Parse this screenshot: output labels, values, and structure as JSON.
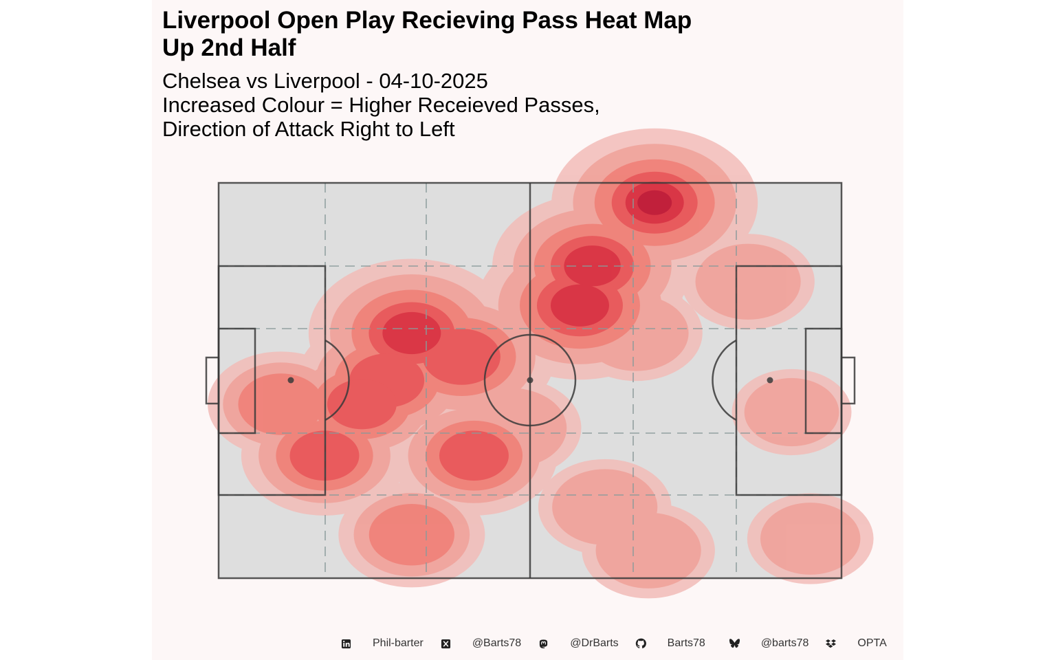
{
  "title": "Liverpool Open Play Recieving Pass Heat Map\nUp 2nd Half",
  "subtitle": "Chelsea vs Liverpool - 04-10-2025\nIncreased Colour = Higher Receieved Passes,\nDirection of Attack Right to Left",
  "footer": [
    {
      "icon": "linkedin-icon",
      "text": "Phil-barter"
    },
    {
      "icon": "x-twitter-icon",
      "text": "@Barts78"
    },
    {
      "icon": "mastodon-icon",
      "text": "@DrBarts"
    },
    {
      "icon": "github-icon",
      "text": "Barts78"
    },
    {
      "icon": "bluesky-icon",
      "text": "@barts78"
    },
    {
      "icon": "dropbox-icon",
      "text": "OPTA"
    }
  ],
  "colors": {
    "background": "#fdf7f7",
    "pitch": "#dedede",
    "lines": "#3a3a3a",
    "zone_lines": "#8a9a9a",
    "density_levels": [
      "#f2bcb8",
      "#f0a39b",
      "#ef8178",
      "#e8575a",
      "#d83344",
      "#be1e3a"
    ]
  },
  "chart_data": {
    "type": "heatmap",
    "description_units": "pitch coordinates 0-100 (x length, y width)",
    "xlim": [
      0,
      100
    ],
    "ylim": [
      0,
      100
    ],
    "hotspots": [
      {
        "x": 70,
        "y": 95,
        "weight": 1.0
      },
      {
        "x": 60,
        "y": 79,
        "weight": 0.8
      },
      {
        "x": 58,
        "y": 69,
        "weight": 0.85
      },
      {
        "x": 31,
        "y": 62,
        "weight": 0.85
      },
      {
        "x": 39,
        "y": 56,
        "weight": 0.7
      },
      {
        "x": 27,
        "y": 50,
        "weight": 0.65
      },
      {
        "x": 23,
        "y": 44,
        "weight": 0.55
      },
      {
        "x": 17,
        "y": 31,
        "weight": 0.55
      },
      {
        "x": 41,
        "y": 31,
        "weight": 0.55
      },
      {
        "x": 47,
        "y": 38,
        "weight": 0.35
      },
      {
        "x": 10,
        "y": 44,
        "weight": 0.4
      },
      {
        "x": 31,
        "y": 11,
        "weight": 0.4
      },
      {
        "x": 62,
        "y": 18,
        "weight": 0.3
      },
      {
        "x": 69,
        "y": 7,
        "weight": 0.3
      },
      {
        "x": 85,
        "y": 75,
        "weight": 0.3
      },
      {
        "x": 95,
        "y": 10,
        "weight": 0.25
      },
      {
        "x": 67,
        "y": 62,
        "weight": 0.3
      },
      {
        "x": 92,
        "y": 42,
        "weight": 0.2
      }
    ],
    "grid": true
  }
}
